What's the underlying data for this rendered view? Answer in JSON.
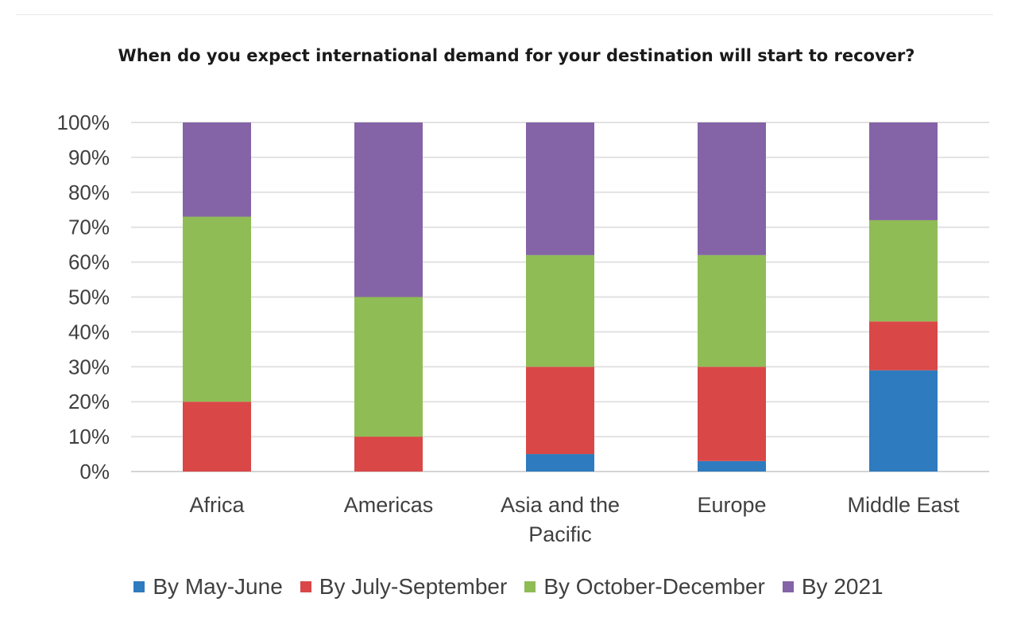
{
  "chart_data": {
    "type": "bar",
    "stacked": true,
    "title": "When do you expect international demand for your destination will start to recover?",
    "categories": [
      "Africa",
      "Americas",
      "Asia and the Pacific",
      "Europe",
      "Middle East"
    ],
    "category_lines": [
      [
        "Africa"
      ],
      [
        "Americas"
      ],
      [
        "Asia and the",
        "Pacific"
      ],
      [
        "Europe"
      ],
      [
        "Middle East"
      ]
    ],
    "series": [
      {
        "name": "By May-June",
        "color": "#2e7bbf",
        "values": [
          0,
          0,
          5,
          3,
          29
        ]
      },
      {
        "name": "By July-September",
        "color": "#d94747",
        "values": [
          20,
          10,
          25,
          27,
          14
        ]
      },
      {
        "name": "By October-December",
        "color": "#8fbc55",
        "values": [
          53,
          40,
          32,
          32,
          29
        ]
      },
      {
        "name": "By 2021",
        "color": "#8463a6",
        "values": [
          27,
          50,
          38,
          38,
          28
        ]
      }
    ],
    "yticks": [
      "0%",
      "10%",
      "20%",
      "30%",
      "40%",
      "50%",
      "60%",
      "70%",
      "80%",
      "90%",
      "100%"
    ],
    "ylim": [
      0,
      100
    ],
    "xlabel": "",
    "ylabel": "",
    "grid": true,
    "legend_position": "bottom"
  }
}
